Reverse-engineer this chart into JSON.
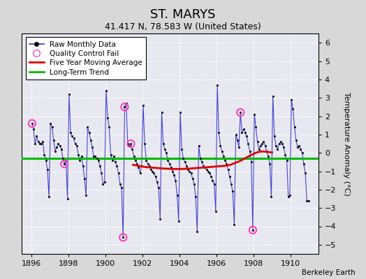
{
  "title": "ST. MARYS",
  "subtitle": "41.417 N, 78.583 W (United States)",
  "ylabel": "Temperature Anomaly (°C)",
  "credit": "Berkeley Earth",
  "xlim": [
    1895.5,
    1911.5
  ],
  "ylim": [
    -5.5,
    6.5
  ],
  "yticks": [
    -5,
    -4,
    -3,
    -2,
    -1,
    0,
    1,
    2,
    3,
    4,
    5,
    6
  ],
  "xticks": [
    1896,
    1898,
    1900,
    1902,
    1904,
    1906,
    1908,
    1910
  ],
  "bg_color": "#d8d8d8",
  "plot_bg_color": "#e8e8f0",
  "raw_color": "#3333cc",
  "dot_color": "#111111",
  "moving_avg_color": "#dd0000",
  "trend_color": "#00bb00",
  "qc_color": "#ff44bb",
  "long_term_trend_y": -0.3,
  "raw_monthly_data": [
    [
      1896.042,
      1.6
    ],
    [
      1896.125,
      1.3
    ],
    [
      1896.208,
      0.5
    ],
    [
      1896.292,
      0.9
    ],
    [
      1896.375,
      0.6
    ],
    [
      1896.458,
      0.5
    ],
    [
      1896.542,
      0.5
    ],
    [
      1896.625,
      0.6
    ],
    [
      1896.708,
      -0.1
    ],
    [
      1896.792,
      -0.4
    ],
    [
      1896.875,
      -0.9
    ],
    [
      1896.958,
      -2.4
    ],
    [
      1897.042,
      1.6
    ],
    [
      1897.125,
      1.4
    ],
    [
      1897.208,
      0.7
    ],
    [
      1897.292,
      0.1
    ],
    [
      1897.375,
      0.3
    ],
    [
      1897.458,
      0.5
    ],
    [
      1897.542,
      0.4
    ],
    [
      1897.625,
      0.2
    ],
    [
      1897.708,
      -0.3
    ],
    [
      1897.792,
      -0.6
    ],
    [
      1897.875,
      -0.4
    ],
    [
      1897.958,
      -2.5
    ],
    [
      1898.042,
      3.2
    ],
    [
      1898.125,
      1.1
    ],
    [
      1898.208,
      0.9
    ],
    [
      1898.292,
      0.8
    ],
    [
      1898.375,
      0.5
    ],
    [
      1898.458,
      0.4
    ],
    [
      1898.542,
      -0.1
    ],
    [
      1898.625,
      -0.4
    ],
    [
      1898.708,
      -0.2
    ],
    [
      1898.792,
      -0.7
    ],
    [
      1898.875,
      -1.4
    ],
    [
      1898.958,
      -2.3
    ],
    [
      1899.042,
      1.4
    ],
    [
      1899.125,
      1.1
    ],
    [
      1899.208,
      0.7
    ],
    [
      1899.292,
      0.3
    ],
    [
      1899.375,
      -0.2
    ],
    [
      1899.458,
      -0.2
    ],
    [
      1899.542,
      -0.3
    ],
    [
      1899.625,
      -0.4
    ],
    [
      1899.708,
      -0.7
    ],
    [
      1899.792,
      -1.1
    ],
    [
      1899.875,
      -1.7
    ],
    [
      1899.958,
      -1.6
    ],
    [
      1900.042,
      3.4
    ],
    [
      1900.125,
      1.9
    ],
    [
      1900.208,
      1.4
    ],
    [
      1900.292,
      -0.1
    ],
    [
      1900.375,
      -0.4
    ],
    [
      1900.458,
      -0.2
    ],
    [
      1900.542,
      -0.5
    ],
    [
      1900.625,
      -0.7
    ],
    [
      1900.708,
      -1.1
    ],
    [
      1900.792,
      -1.7
    ],
    [
      1900.875,
      -1.9
    ],
    [
      1900.958,
      -4.6
    ],
    [
      1901.042,
      2.5
    ],
    [
      1901.125,
      2.7
    ],
    [
      1901.208,
      0.5
    ],
    [
      1901.292,
      0.4
    ],
    [
      1901.375,
      0.5
    ],
    [
      1901.458,
      0.2
    ],
    [
      1901.542,
      -0.2
    ],
    [
      1901.625,
      -0.4
    ],
    [
      1901.708,
      -0.6
    ],
    [
      1901.792,
      -0.8
    ],
    [
      1901.875,
      -1.1
    ],
    [
      1901.958,
      -0.7
    ],
    [
      1902.042,
      2.6
    ],
    [
      1902.125,
      0.5
    ],
    [
      1902.208,
      -0.4
    ],
    [
      1902.292,
      -0.6
    ],
    [
      1902.375,
      -0.7
    ],
    [
      1902.458,
      -0.9
    ],
    [
      1902.542,
      -1.0
    ],
    [
      1902.625,
      -1.1
    ],
    [
      1902.708,
      -1.3
    ],
    [
      1902.792,
      -1.6
    ],
    [
      1902.875,
      -1.9
    ],
    [
      1902.958,
      -3.6
    ],
    [
      1903.042,
      2.2
    ],
    [
      1903.125,
      0.5
    ],
    [
      1903.208,
      0.2
    ],
    [
      1903.292,
      0.0
    ],
    [
      1903.375,
      -0.4
    ],
    [
      1903.458,
      -0.6
    ],
    [
      1903.542,
      -0.8
    ],
    [
      1903.625,
      -1.0
    ],
    [
      1903.708,
      -1.2
    ],
    [
      1903.792,
      -1.5
    ],
    [
      1903.875,
      -2.3
    ],
    [
      1903.958,
      -3.7
    ],
    [
      1904.042,
      2.2
    ],
    [
      1904.125,
      0.2
    ],
    [
      1904.208,
      -0.3
    ],
    [
      1904.292,
      -0.5
    ],
    [
      1904.375,
      -0.7
    ],
    [
      1904.458,
      -0.9
    ],
    [
      1904.542,
      -1.0
    ],
    [
      1904.625,
      -1.1
    ],
    [
      1904.708,
      -1.4
    ],
    [
      1904.792,
      -1.7
    ],
    [
      1904.875,
      -2.4
    ],
    [
      1904.958,
      -4.3
    ],
    [
      1905.042,
      0.4
    ],
    [
      1905.125,
      -0.3
    ],
    [
      1905.208,
      -0.5
    ],
    [
      1905.292,
      -0.7
    ],
    [
      1905.375,
      -0.8
    ],
    [
      1905.458,
      -0.9
    ],
    [
      1905.542,
      -1.0
    ],
    [
      1905.625,
      -1.1
    ],
    [
      1905.708,
      -1.3
    ],
    [
      1905.792,
      -1.5
    ],
    [
      1905.875,
      -1.7
    ],
    [
      1905.958,
      -3.2
    ],
    [
      1906.042,
      3.7
    ],
    [
      1906.125,
      1.1
    ],
    [
      1906.208,
      0.4
    ],
    [
      1906.292,
      0.1
    ],
    [
      1906.375,
      -0.2
    ],
    [
      1906.458,
      -0.4
    ],
    [
      1906.542,
      -0.6
    ],
    [
      1906.625,
      -0.9
    ],
    [
      1906.708,
      -1.3
    ],
    [
      1906.792,
      -1.7
    ],
    [
      1906.875,
      -2.1
    ],
    [
      1906.958,
      -3.9
    ],
    [
      1907.042,
      1.0
    ],
    [
      1907.125,
      0.7
    ],
    [
      1907.208,
      0.3
    ],
    [
      1907.292,
      2.2
    ],
    [
      1907.375,
      1.1
    ],
    [
      1907.458,
      1.3
    ],
    [
      1907.542,
      1.1
    ],
    [
      1907.625,
      0.9
    ],
    [
      1907.708,
      0.5
    ],
    [
      1907.792,
      0.1
    ],
    [
      1907.875,
      -0.5
    ],
    [
      1907.958,
      -4.2
    ],
    [
      1908.042,
      2.1
    ],
    [
      1908.125,
      1.4
    ],
    [
      1908.208,
      0.6
    ],
    [
      1908.292,
      0.2
    ],
    [
      1908.375,
      0.4
    ],
    [
      1908.458,
      0.5
    ],
    [
      1908.542,
      0.6
    ],
    [
      1908.625,
      0.4
    ],
    [
      1908.708,
      0.1
    ],
    [
      1908.792,
      -0.2
    ],
    [
      1908.875,
      -0.6
    ],
    [
      1908.958,
      -2.4
    ],
    [
      1909.042,
      3.1
    ],
    [
      1909.125,
      0.9
    ],
    [
      1909.208,
      0.4
    ],
    [
      1909.292,
      0.2
    ],
    [
      1909.375,
      0.5
    ],
    [
      1909.458,
      0.6
    ],
    [
      1909.542,
      0.5
    ],
    [
      1909.625,
      0.3
    ],
    [
      1909.708,
      -0.1
    ],
    [
      1909.792,
      -0.4
    ],
    [
      1909.875,
      -2.4
    ],
    [
      1909.958,
      -2.3
    ],
    [
      1910.042,
      2.9
    ],
    [
      1910.125,
      2.4
    ],
    [
      1910.208,
      1.4
    ],
    [
      1910.292,
      0.7
    ],
    [
      1910.375,
      0.3
    ],
    [
      1910.458,
      0.4
    ],
    [
      1910.542,
      0.2
    ],
    [
      1910.625,
      0.0
    ],
    [
      1910.708,
      -0.6
    ],
    [
      1910.792,
      -1.1
    ],
    [
      1910.875,
      -2.6
    ],
    [
      1910.958,
      -2.6
    ]
  ],
  "qc_fail_points": [
    [
      1896.042,
      1.6
    ],
    [
      1897.792,
      -0.6
    ],
    [
      1900.958,
      -4.6
    ],
    [
      1901.042,
      2.5
    ],
    [
      1901.375,
      0.5
    ],
    [
      1907.292,
      2.2
    ],
    [
      1907.958,
      -4.2
    ]
  ],
  "moving_avg": [
    [
      1901.5,
      -0.65
    ],
    [
      1901.75,
      -0.7
    ],
    [
      1902.0,
      -0.75
    ],
    [
      1902.25,
      -0.78
    ],
    [
      1902.5,
      -0.8
    ],
    [
      1902.75,
      -0.82
    ],
    [
      1903.0,
      -0.84
    ],
    [
      1903.25,
      -0.86
    ],
    [
      1903.5,
      -0.87
    ],
    [
      1903.75,
      -0.88
    ],
    [
      1904.0,
      -0.88
    ],
    [
      1904.25,
      -0.87
    ],
    [
      1904.5,
      -0.86
    ],
    [
      1904.75,
      -0.84
    ],
    [
      1905.0,
      -0.82
    ],
    [
      1905.25,
      -0.8
    ],
    [
      1905.5,
      -0.78
    ],
    [
      1905.75,
      -0.76
    ],
    [
      1906.0,
      -0.74
    ],
    [
      1906.25,
      -0.72
    ],
    [
      1906.5,
      -0.7
    ],
    [
      1906.75,
      -0.65
    ],
    [
      1907.0,
      -0.55
    ],
    [
      1907.25,
      -0.45
    ],
    [
      1907.5,
      -0.32
    ],
    [
      1907.75,
      -0.18
    ],
    [
      1908.0,
      -0.05
    ],
    [
      1908.25,
      0.05
    ],
    [
      1908.5,
      0.08
    ],
    [
      1908.75,
      0.05
    ],
    [
      1909.0,
      0.02
    ]
  ]
}
